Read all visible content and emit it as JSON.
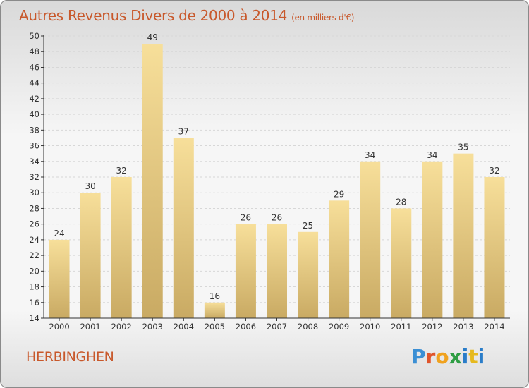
{
  "title": "Autres Revenus Divers de 2000 à 2014",
  "subtitle": "(en milliers d'€)",
  "location": "HERBINGHEN",
  "brand": {
    "letters": [
      "P",
      "r",
      "o",
      "x",
      "i",
      "t",
      "i"
    ],
    "colors": [
      "#3b8fd4",
      "#e0552b",
      "#f0a21f",
      "#2f9e44",
      "#2a7dc9",
      "#e6b91e",
      "#2a7dc9"
    ]
  },
  "colors": {
    "title": "#c8582b",
    "bar_light": "#f7df9a",
    "bar_dark": "#c9aa63",
    "axis": "#333333",
    "grid": "#d7d7d7"
  },
  "chart_data": {
    "type": "bar",
    "title": "Autres Revenus Divers de 2000 à 2014",
    "subtitle": "(en milliers d'€)",
    "categories": [
      "2000",
      "2001",
      "2002",
      "2003",
      "2004",
      "2005",
      "2006",
      "2007",
      "2008",
      "2009",
      "2010",
      "2011",
      "2012",
      "2013",
      "2014"
    ],
    "values": [
      24,
      30,
      32,
      49,
      37,
      16,
      26,
      26,
      25,
      29,
      34,
      28,
      34,
      35,
      32
    ],
    "ylim": [
      14,
      50
    ],
    "yticks": [
      14,
      16,
      18,
      20,
      22,
      24,
      26,
      28,
      30,
      32,
      34,
      36,
      38,
      40,
      42,
      44,
      46,
      48,
      50
    ],
    "xlabel": "",
    "ylabel": "",
    "grid": true
  }
}
